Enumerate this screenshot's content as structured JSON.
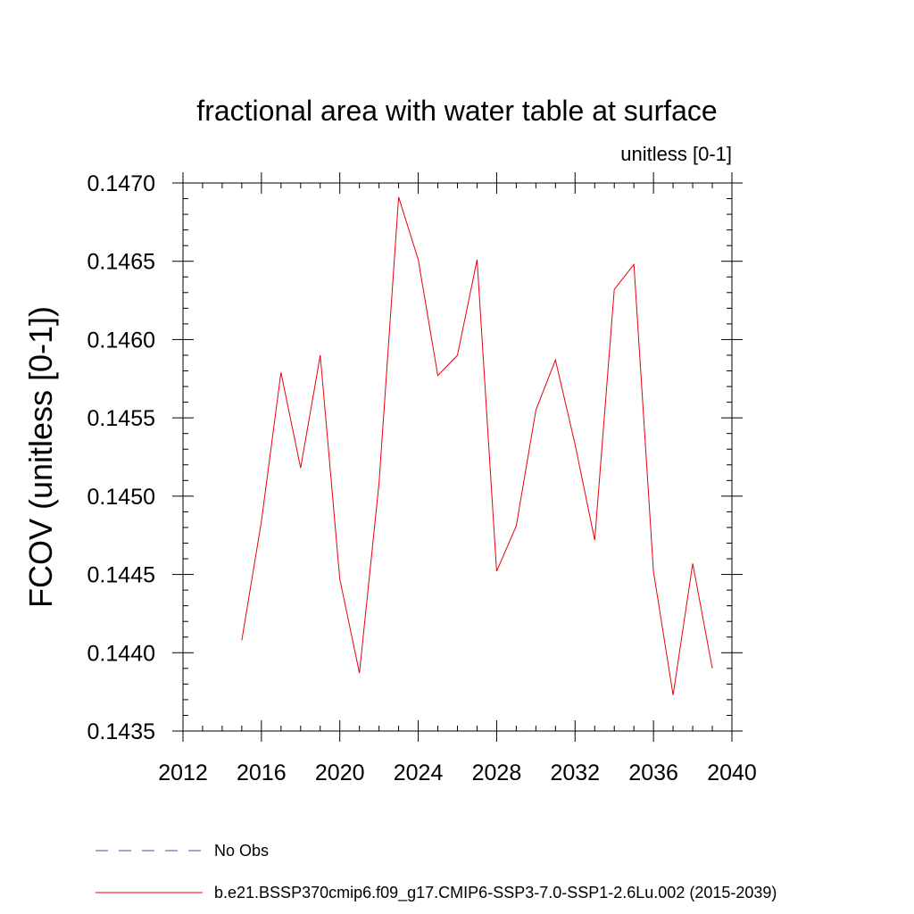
{
  "chart_data": {
    "type": "line",
    "title": "fractional area with water table at surface",
    "subtitle": "unitless [0-1]",
    "xlabel": "",
    "ylabel": "FCOV  (unitless [0-1])",
    "xlim": [
      2012,
      2040
    ],
    "ylim": [
      0.1435,
      0.147
    ],
    "x_ticks": [
      2012,
      2016,
      2020,
      2024,
      2028,
      2032,
      2036,
      2040
    ],
    "x_tick_labels": [
      "2012",
      "2016",
      "2020",
      "2024",
      "2028",
      "2032",
      "2036",
      "2040"
    ],
    "y_ticks": [
      0.1435,
      0.144,
      0.1445,
      0.145,
      0.1455,
      0.146,
      0.1465,
      0.147
    ],
    "y_tick_labels": [
      "0.1435",
      "0.1440",
      "0.1445",
      "0.1450",
      "0.1455",
      "0.1460",
      "0.1465",
      "0.1470"
    ],
    "grid": false,
    "legend_position": "bottom",
    "series": [
      {
        "name": "b.e21.BSSP370cmip6.f09_g17.CMIP6-SSP3-7.0-SSP1-2.6Lu.002 (2015-2039)",
        "color": "#e8000b",
        "style": "solid",
        "x": [
          2015,
          2016,
          2017,
          2018,
          2019,
          2020,
          2021,
          2022,
          2023,
          2024,
          2025,
          2026,
          2027,
          2028,
          2029,
          2030,
          2031,
          2032,
          2033,
          2034,
          2035,
          2036,
          2037,
          2038,
          2039
        ],
        "values": [
          0.14408,
          0.14484,
          0.14579,
          0.14518,
          0.1459,
          0.14447,
          0.14387,
          0.14508,
          0.14691,
          0.14651,
          0.14577,
          0.1459,
          0.14651,
          0.14452,
          0.14481,
          0.14555,
          0.14587,
          0.14533,
          0.14472,
          0.14632,
          0.14648,
          0.14452,
          0.14373,
          0.14457,
          0.1439
        ]
      }
    ],
    "legend": [
      {
        "label": "No Obs",
        "color": "#5544aa",
        "style": "dashed"
      },
      {
        "label": "b.e21.BSSP370cmip6.f09_g17.CMIP6-SSP3-7.0-SSP1-2.6Lu.002 (2015-2039)",
        "color": "#e8000b",
        "style": "solid"
      }
    ]
  }
}
